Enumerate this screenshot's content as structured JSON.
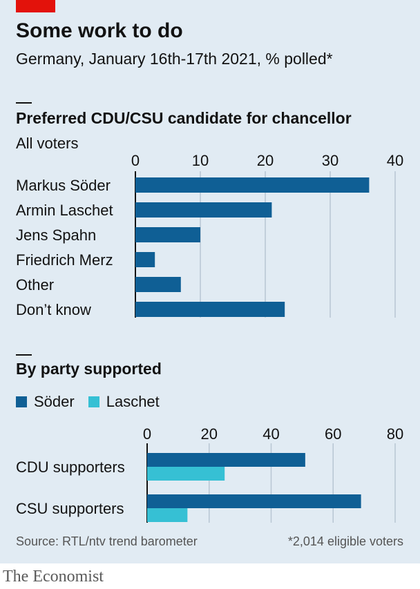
{
  "header": {
    "title": "Some work to do",
    "subtitle": "Germany, January 16th-17th 2021, % polled*"
  },
  "sections": {
    "s1_title": "Preferred CDU/CSU candidate for chancellor",
    "s1_sub": "All voters",
    "s2_title": "By party supported"
  },
  "colors": {
    "soder": "#0f5f95",
    "laschet": "#36c0d4",
    "background": "#e1ebf3",
    "grid": "#b8c6d3",
    "accent": "#e3120b"
  },
  "chart_data": [
    {
      "type": "bar",
      "orientation": "horizontal",
      "title": "Preferred CDU/CSU candidate for chancellor",
      "subtitle": "All voters",
      "categories": [
        "Markus Söder",
        "Armin Laschet",
        "Jens Spahn",
        "Friedrich Merz",
        "Other",
        "Don’t know"
      ],
      "values": [
        36,
        21,
        10,
        3,
        7,
        23
      ],
      "xlim": [
        0,
        40
      ],
      "ticks": [
        0,
        10,
        20,
        30,
        40
      ],
      "tick_labels": [
        "0",
        "10",
        "20",
        "30",
        "40"
      ],
      "grid": true,
      "axis_position": "top"
    },
    {
      "type": "bar",
      "orientation": "horizontal",
      "title": "By party supported",
      "categories": [
        "CDU supporters",
        "CSU supporters"
      ],
      "series": [
        {
          "name": "Söder",
          "values": [
            51,
            69
          ],
          "color": "#0f5f95"
        },
        {
          "name": "Laschet",
          "values": [
            25,
            13
          ],
          "color": "#36c0d4"
        }
      ],
      "xlim": [
        0,
        80
      ],
      "ticks": [
        0,
        20,
        40,
        60,
        80
      ],
      "tick_labels": [
        "0",
        "20",
        "40",
        "60",
        "80"
      ],
      "grid": true,
      "legend": "top-left",
      "axis_position": "top"
    }
  ],
  "footer": {
    "source": "Source: RTL/ntv trend barometer",
    "note": "*2,014 eligible voters"
  },
  "brand": "The Economist"
}
